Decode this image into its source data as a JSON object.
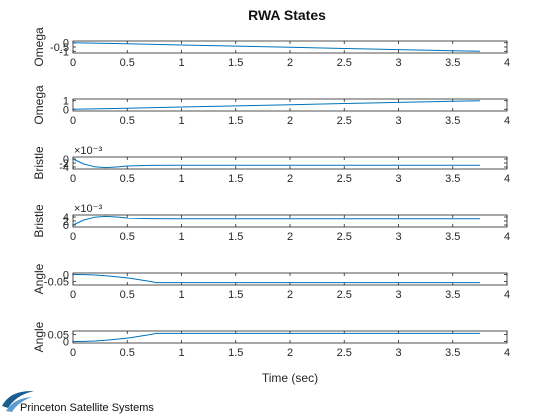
{
  "chart_data": {
    "type": "line",
    "title": "RWA States",
    "xlabel": "Time (sec)",
    "xlim": [
      0,
      4
    ],
    "x_ticks": [
      "0",
      "0.5",
      "1",
      "1.5",
      "2",
      "2.5",
      "3",
      "3.5",
      "4"
    ],
    "line_color": "#0072bd",
    "grid": false,
    "panels": [
      {
        "ylabel": "Omega",
        "exponent": "",
        "ylim": [
          -1.2,
          0.2
        ],
        "y_ticks": [
          {
            "value": 0,
            "label": "0"
          },
          {
            "value": -0.5,
            "label": "-0.5"
          },
          {
            "value": -1,
            "label": "-1"
          }
        ],
        "x": [
          0,
          0.5,
          1,
          1.5,
          2,
          2.5,
          3,
          3.5,
          3.75
        ],
        "y": [
          0,
          -0.13,
          -0.27,
          -0.4,
          -0.53,
          -0.67,
          -0.8,
          -0.93,
          -1.0
        ]
      },
      {
        "ylabel": "Omega",
        "exponent": "",
        "ylim": [
          -0.2,
          1.2
        ],
        "y_ticks": [
          {
            "value": 1,
            "label": "1"
          },
          {
            "value": 0,
            "label": "0"
          }
        ],
        "x": [
          0,
          0.5,
          1,
          1.5,
          2,
          2.5,
          3,
          3.5,
          3.75
        ],
        "y": [
          0,
          0.13,
          0.27,
          0.4,
          0.53,
          0.67,
          0.8,
          0.93,
          1.0
        ]
      },
      {
        "ylabel": "Bristle",
        "exponent": "×10⁻³",
        "ylim": [
          -5,
          1
        ],
        "y_ticks": [
          {
            "value": 0,
            "label": "0"
          },
          {
            "value": -2,
            "label": "-2"
          },
          {
            "value": -4,
            "label": "-4"
          }
        ],
        "x": [
          0,
          0.1,
          0.2,
          0.3,
          0.4,
          0.5,
          0.7,
          1,
          2,
          3.75
        ],
        "y": [
          0,
          -2.5,
          -3.9,
          -4.3,
          -4.0,
          -3.5,
          -3.2,
          -3.1,
          -3.1,
          -3.1
        ]
      },
      {
        "ylabel": "Bristle",
        "exponent": "×10⁻³",
        "ylim": [
          -1,
          5
        ],
        "y_ticks": [
          {
            "value": 4,
            "label": "4"
          },
          {
            "value": 2,
            "label": "2"
          },
          {
            "value": 0,
            "label": "0"
          }
        ],
        "x": [
          0,
          0.1,
          0.2,
          0.3,
          0.4,
          0.5,
          0.7,
          1,
          2,
          3.75
        ],
        "y": [
          0,
          2.5,
          3.9,
          4.3,
          4.0,
          3.5,
          3.2,
          3.1,
          3.1,
          3.1
        ]
      },
      {
        "ylabel": "Angle",
        "exponent": "",
        "ylim": [
          -0.075,
          0.01
        ],
        "y_ticks": [
          {
            "value": 0,
            "label": "0"
          },
          {
            "value": -0.05,
            "label": "-0.05"
          }
        ],
        "x": [
          0,
          0.1,
          0.2,
          0.3,
          0.4,
          0.5,
          0.6,
          0.7,
          0.77,
          1,
          2,
          3.75
        ],
        "y": [
          0,
          -0.001,
          -0.004,
          -0.009,
          -0.016,
          -0.025,
          -0.036,
          -0.049,
          -0.058,
          -0.058,
          -0.058,
          -0.058
        ]
      },
      {
        "ylabel": "Angle",
        "exponent": "",
        "ylim": [
          -0.01,
          0.075
        ],
        "y_ticks": [
          {
            "value": 0.05,
            "label": "0.05"
          },
          {
            "value": 0,
            "label": "0"
          }
        ],
        "x": [
          0,
          0.1,
          0.2,
          0.3,
          0.4,
          0.5,
          0.6,
          0.7,
          0.77,
          1,
          2,
          3.75
        ],
        "y": [
          0,
          0.001,
          0.004,
          0.009,
          0.016,
          0.025,
          0.036,
          0.049,
          0.058,
          0.058,
          0.058,
          0.058
        ]
      }
    ]
  },
  "branding": {
    "logo_text": "Princeton Satellite Systems",
    "logo_color": "#1a5d8f"
  }
}
